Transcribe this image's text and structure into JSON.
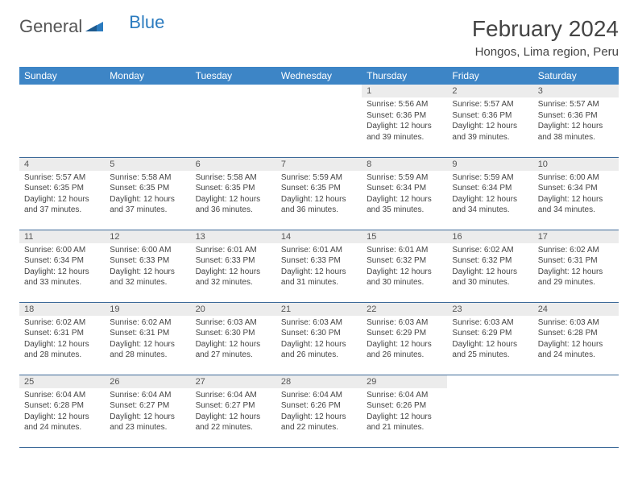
{
  "brand": {
    "name1": "General",
    "name2": "Blue"
  },
  "title": "February 2024",
  "location": "Hongos, Lima region, Peru",
  "colors": {
    "header_bg": "#3d85c6",
    "header_text": "#ffffff",
    "daynum_bg": "#ececec",
    "row_border": "#3d6a99",
    "brand_blue": "#2b7bbf"
  },
  "weekdays": [
    "Sunday",
    "Monday",
    "Tuesday",
    "Wednesday",
    "Thursday",
    "Friday",
    "Saturday"
  ],
  "weeks": [
    [
      {
        "empty": true
      },
      {
        "empty": true
      },
      {
        "empty": true
      },
      {
        "empty": true
      },
      {
        "n": "1",
        "sr": "Sunrise: 5:56 AM",
        "ss": "Sunset: 6:36 PM",
        "dl": "Daylight: 12 hours and 39 minutes."
      },
      {
        "n": "2",
        "sr": "Sunrise: 5:57 AM",
        "ss": "Sunset: 6:36 PM",
        "dl": "Daylight: 12 hours and 39 minutes."
      },
      {
        "n": "3",
        "sr": "Sunrise: 5:57 AM",
        "ss": "Sunset: 6:36 PM",
        "dl": "Daylight: 12 hours and 38 minutes."
      }
    ],
    [
      {
        "n": "4",
        "sr": "Sunrise: 5:57 AM",
        "ss": "Sunset: 6:35 PM",
        "dl": "Daylight: 12 hours and 37 minutes."
      },
      {
        "n": "5",
        "sr": "Sunrise: 5:58 AM",
        "ss": "Sunset: 6:35 PM",
        "dl": "Daylight: 12 hours and 37 minutes."
      },
      {
        "n": "6",
        "sr": "Sunrise: 5:58 AM",
        "ss": "Sunset: 6:35 PM",
        "dl": "Daylight: 12 hours and 36 minutes."
      },
      {
        "n": "7",
        "sr": "Sunrise: 5:59 AM",
        "ss": "Sunset: 6:35 PM",
        "dl": "Daylight: 12 hours and 36 minutes."
      },
      {
        "n": "8",
        "sr": "Sunrise: 5:59 AM",
        "ss": "Sunset: 6:34 PM",
        "dl": "Daylight: 12 hours and 35 minutes."
      },
      {
        "n": "9",
        "sr": "Sunrise: 5:59 AM",
        "ss": "Sunset: 6:34 PM",
        "dl": "Daylight: 12 hours and 34 minutes."
      },
      {
        "n": "10",
        "sr": "Sunrise: 6:00 AM",
        "ss": "Sunset: 6:34 PM",
        "dl": "Daylight: 12 hours and 34 minutes."
      }
    ],
    [
      {
        "n": "11",
        "sr": "Sunrise: 6:00 AM",
        "ss": "Sunset: 6:34 PM",
        "dl": "Daylight: 12 hours and 33 minutes."
      },
      {
        "n": "12",
        "sr": "Sunrise: 6:00 AM",
        "ss": "Sunset: 6:33 PM",
        "dl": "Daylight: 12 hours and 32 minutes."
      },
      {
        "n": "13",
        "sr": "Sunrise: 6:01 AM",
        "ss": "Sunset: 6:33 PM",
        "dl": "Daylight: 12 hours and 32 minutes."
      },
      {
        "n": "14",
        "sr": "Sunrise: 6:01 AM",
        "ss": "Sunset: 6:33 PM",
        "dl": "Daylight: 12 hours and 31 minutes."
      },
      {
        "n": "15",
        "sr": "Sunrise: 6:01 AM",
        "ss": "Sunset: 6:32 PM",
        "dl": "Daylight: 12 hours and 30 minutes."
      },
      {
        "n": "16",
        "sr": "Sunrise: 6:02 AM",
        "ss": "Sunset: 6:32 PM",
        "dl": "Daylight: 12 hours and 30 minutes."
      },
      {
        "n": "17",
        "sr": "Sunrise: 6:02 AM",
        "ss": "Sunset: 6:31 PM",
        "dl": "Daylight: 12 hours and 29 minutes."
      }
    ],
    [
      {
        "n": "18",
        "sr": "Sunrise: 6:02 AM",
        "ss": "Sunset: 6:31 PM",
        "dl": "Daylight: 12 hours and 28 minutes."
      },
      {
        "n": "19",
        "sr": "Sunrise: 6:02 AM",
        "ss": "Sunset: 6:31 PM",
        "dl": "Daylight: 12 hours and 28 minutes."
      },
      {
        "n": "20",
        "sr": "Sunrise: 6:03 AM",
        "ss": "Sunset: 6:30 PM",
        "dl": "Daylight: 12 hours and 27 minutes."
      },
      {
        "n": "21",
        "sr": "Sunrise: 6:03 AM",
        "ss": "Sunset: 6:30 PM",
        "dl": "Daylight: 12 hours and 26 minutes."
      },
      {
        "n": "22",
        "sr": "Sunrise: 6:03 AM",
        "ss": "Sunset: 6:29 PM",
        "dl": "Daylight: 12 hours and 26 minutes."
      },
      {
        "n": "23",
        "sr": "Sunrise: 6:03 AM",
        "ss": "Sunset: 6:29 PM",
        "dl": "Daylight: 12 hours and 25 minutes."
      },
      {
        "n": "24",
        "sr": "Sunrise: 6:03 AM",
        "ss": "Sunset: 6:28 PM",
        "dl": "Daylight: 12 hours and 24 minutes."
      }
    ],
    [
      {
        "n": "25",
        "sr": "Sunrise: 6:04 AM",
        "ss": "Sunset: 6:28 PM",
        "dl": "Daylight: 12 hours and 24 minutes."
      },
      {
        "n": "26",
        "sr": "Sunrise: 6:04 AM",
        "ss": "Sunset: 6:27 PM",
        "dl": "Daylight: 12 hours and 23 minutes."
      },
      {
        "n": "27",
        "sr": "Sunrise: 6:04 AM",
        "ss": "Sunset: 6:27 PM",
        "dl": "Daylight: 12 hours and 22 minutes."
      },
      {
        "n": "28",
        "sr": "Sunrise: 6:04 AM",
        "ss": "Sunset: 6:26 PM",
        "dl": "Daylight: 12 hours and 22 minutes."
      },
      {
        "n": "29",
        "sr": "Sunrise: 6:04 AM",
        "ss": "Sunset: 6:26 PM",
        "dl": "Daylight: 12 hours and 21 minutes."
      },
      {
        "empty": true
      },
      {
        "empty": true
      }
    ]
  ]
}
